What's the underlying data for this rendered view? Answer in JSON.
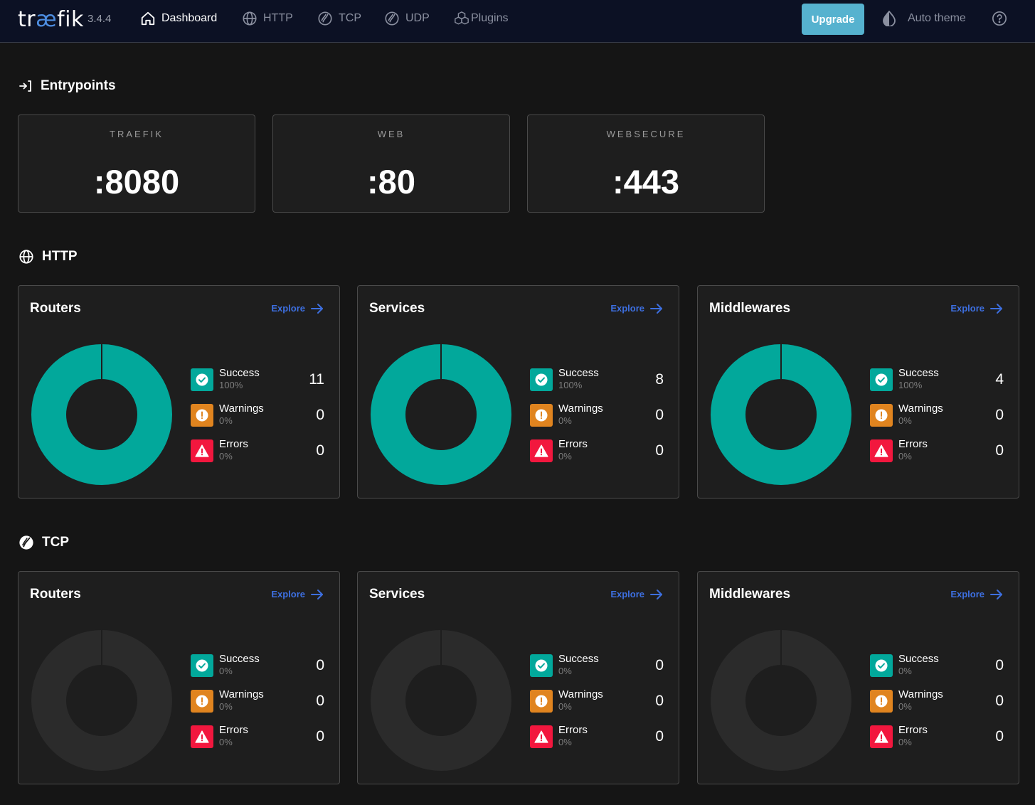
{
  "nav": {
    "brand_pre": "tr",
    "brand_ae": "æ",
    "brand_post": "fik",
    "version": "3.4.4",
    "items": [
      {
        "label": "Dashboard",
        "icon": "home-icon",
        "active": true
      },
      {
        "label": "HTTP",
        "icon": "globe-icon",
        "active": false
      },
      {
        "label": "TCP",
        "icon": "tcp-icon",
        "active": false
      },
      {
        "label": "UDP",
        "icon": "udp-icon",
        "active": false
      },
      {
        "label": "Plugins",
        "icon": "plugins-icon",
        "active": false
      }
    ],
    "upgrade_label": "Upgrade",
    "theme_label": "Auto theme",
    "help_icon": "help-icon"
  },
  "colors": {
    "navbar_bg": "#0c1124",
    "page_bg": "#151515",
    "card_bg": "#1e1e1e",
    "success": "#02a89b",
    "warning": "#e0841f",
    "error": "#f2173e",
    "empty_ring": "#2b2b2b",
    "explore": "#3d6fe0",
    "upgrade": "#56b2cf"
  },
  "entrypoints": {
    "title": "Entrypoints",
    "items": [
      {
        "name": "TRAEFIK",
        "port": ":8080"
      },
      {
        "name": "WEB",
        "port": ":80"
      },
      {
        "name": "WEBSECURE",
        "port": ":443"
      }
    ]
  },
  "http": {
    "title": "HTTP",
    "cards": [
      {
        "title": "Routers",
        "explore": "Explore",
        "success": {
          "label": "Success",
          "pct": "100%",
          "count": "11"
        },
        "warnings": {
          "label": "Warnings",
          "pct": "0%",
          "count": "0"
        },
        "errors": {
          "label": "Errors",
          "pct": "0%",
          "count": "0"
        },
        "success_fraction": 1
      },
      {
        "title": "Services",
        "explore": "Explore",
        "success": {
          "label": "Success",
          "pct": "100%",
          "count": "8"
        },
        "warnings": {
          "label": "Warnings",
          "pct": "0%",
          "count": "0"
        },
        "errors": {
          "label": "Errors",
          "pct": "0%",
          "count": "0"
        },
        "success_fraction": 1
      },
      {
        "title": "Middlewares",
        "explore": "Explore",
        "success": {
          "label": "Success",
          "pct": "100%",
          "count": "4"
        },
        "warnings": {
          "label": "Warnings",
          "pct": "0%",
          "count": "0"
        },
        "errors": {
          "label": "Errors",
          "pct": "0%",
          "count": "0"
        },
        "success_fraction": 1
      }
    ]
  },
  "tcp": {
    "title": "TCP",
    "cards": [
      {
        "title": "Routers",
        "explore": "Explore",
        "success": {
          "label": "Success",
          "pct": "0%",
          "count": "0"
        },
        "warnings": {
          "label": "Warnings",
          "pct": "0%",
          "count": "0"
        },
        "errors": {
          "label": "Errors",
          "pct": "0%",
          "count": "0"
        },
        "success_fraction": 0
      },
      {
        "title": "Services",
        "explore": "Explore",
        "success": {
          "label": "Success",
          "pct": "0%",
          "count": "0"
        },
        "warnings": {
          "label": "Warnings",
          "pct": "0%",
          "count": "0"
        },
        "errors": {
          "label": "Errors",
          "pct": "0%",
          "count": "0"
        },
        "success_fraction": 0
      },
      {
        "title": "Middlewares",
        "explore": "Explore",
        "success": {
          "label": "Success",
          "pct": "0%",
          "count": "0"
        },
        "warnings": {
          "label": "Warnings",
          "pct": "0%",
          "count": "0"
        },
        "errors": {
          "label": "Errors",
          "pct": "0%",
          "count": "0"
        },
        "success_fraction": 0
      }
    ]
  }
}
